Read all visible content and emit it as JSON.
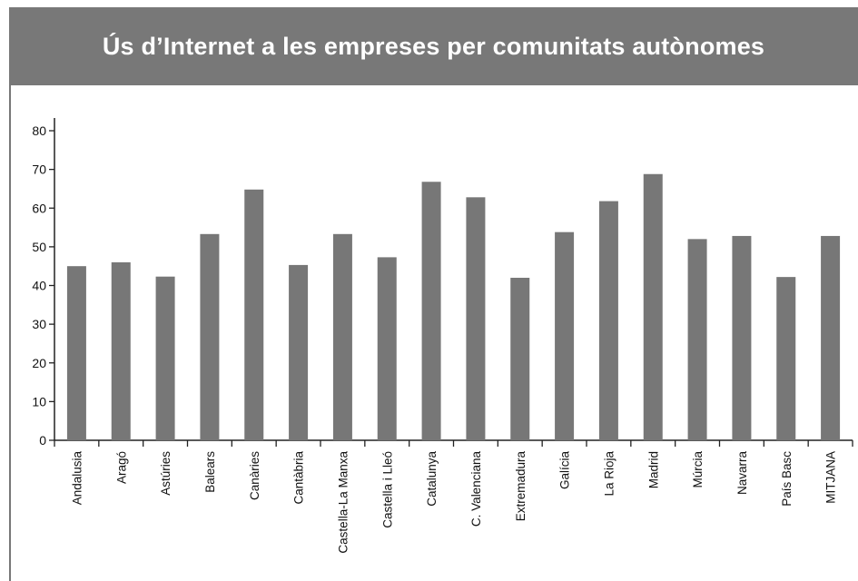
{
  "colors": {
    "header_bg": "#787878",
    "title_text": "#ffffff",
    "bar": "#777777",
    "axis": "#222222"
  },
  "chart_data": {
    "type": "bar",
    "title": "Ús d’Internet a les empreses per comunitats autònomes",
    "xlabel": "",
    "ylabel": "",
    "ylim": [
      0,
      80
    ],
    "yticks": [
      "0",
      "10",
      "20",
      "30",
      "40",
      "50",
      "60",
      "70",
      "80"
    ],
    "grid": false,
    "legend": "none",
    "categories": [
      "Andalusia",
      "Aragó",
      "Astúries",
      "Balears",
      "Canàries",
      "Cantàbria",
      "Castella-La Manxa",
      "Castella i Lleó",
      "Catalunya",
      "C. Valenciana",
      "Extremadura",
      "Galícia",
      "La Rioja",
      "Madrid",
      "Múrcia",
      "Navarra",
      "País Basc",
      "MITJANA"
    ],
    "values": [
      45,
      46,
      42.3,
      53.3,
      64.8,
      45.3,
      53.3,
      47.3,
      66.8,
      62.8,
      42,
      53.8,
      61.8,
      68.8,
      52,
      52.8,
      42.2,
      52.8
    ]
  }
}
